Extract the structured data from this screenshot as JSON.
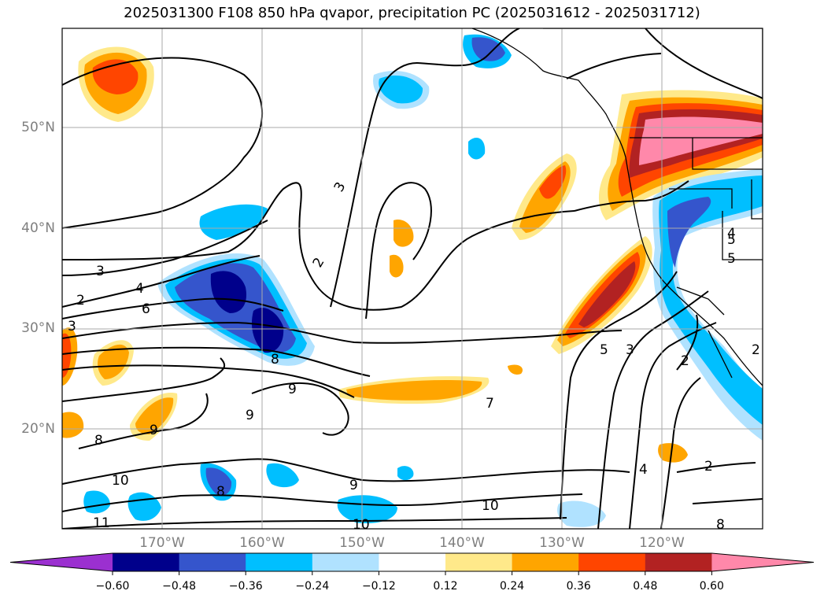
{
  "title": "2025031300 F108 850 hPa qvapor, precipitation PC (2025031612 - 2025031712)",
  "map": {
    "lat_labels": [
      "50°N",
      "40°N",
      "30°N",
      "20°N"
    ],
    "lon_labels": [
      "170°W",
      "160°W",
      "150°W",
      "140°W",
      "130°W",
      "120°W"
    ],
    "contour_labels": [
      "3",
      "2",
      "4",
      "6",
      "3",
      "3",
      "2",
      "8",
      "9",
      "9",
      "8",
      "9",
      "10",
      "11",
      "8",
      "9",
      "10",
      "7",
      "10",
      "8",
      "5",
      "3",
      "2",
      "4",
      "5",
      "4",
      "2",
      "2",
      "5"
    ]
  },
  "colorbar": {
    "ticks": [
      "−0.60",
      "−0.48",
      "−0.36",
      "−0.24",
      "−0.12",
      "0.12",
      "0.24",
      "0.36",
      "0.48",
      "0.60"
    ],
    "colors": [
      "#9b30d0",
      "#00008b",
      "#3555cc",
      "#00bfff",
      "#b0e2ff",
      "#ffffff",
      "#ffe98a",
      "#ffa500",
      "#ff4500",
      "#b22222",
      "#ff88aa"
    ]
  }
}
